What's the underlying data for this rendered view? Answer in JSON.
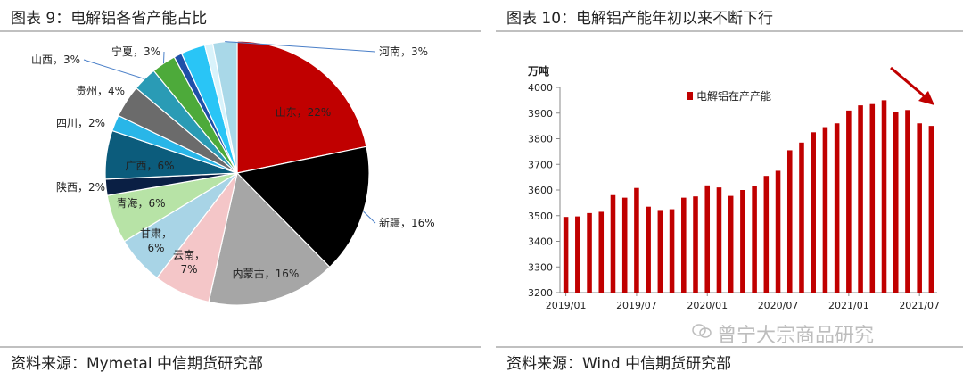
{
  "left": {
    "title": "图表 9：电解铝各省产能占比",
    "source": "资料来源：Mymetal 中信期货研究部"
  },
  "right": {
    "title": "图表 10：电解铝产能年初以来不断下行",
    "source": "资料来源：Wind 中信期货研究部",
    "watermark": "曾宁大宗商品研究"
  },
  "chart_data": [
    {
      "type": "pie",
      "title": "",
      "slices": [
        {
          "label": "山东，22%",
          "value": 22,
          "color": "#c00000"
        },
        {
          "label": "新疆，16%",
          "value": 16,
          "color": "#000000"
        },
        {
          "label": "内蒙古，16%",
          "value": 16,
          "color": "#a6a6a6"
        },
        {
          "label": "云南，7%",
          "value": 7,
          "color": "#f4c6c8"
        },
        {
          "label": "甘肃，6%",
          "value": 6,
          "color": "#a8d4e6"
        },
        {
          "label": "青海，6%",
          "value": 6,
          "color": "#b7e3a6"
        },
        {
          "label": "陕西，2%",
          "value": 2,
          "color": "#0a1f44"
        },
        {
          "label": "广西，6%",
          "value": 6,
          "color": "#0c5c7c"
        },
        {
          "label": "四川，2%",
          "value": 2,
          "color": "#29b6e8"
        },
        {
          "label": "贵州，4%",
          "value": 4,
          "color": "#6b6b6b"
        },
        {
          "label": "山西，3%",
          "value": 3,
          "color": "#2a9bb5"
        },
        {
          "label": "宁夏，3%",
          "value": 3,
          "color": "#4daa3a"
        },
        {
          "label": "",
          "value": 1,
          "color": "#1f4fa8"
        },
        {
          "label": "",
          "value": 3,
          "color": "#29c5f6"
        },
        {
          "label": "",
          "value": 1,
          "color": "#d9f3fb"
        },
        {
          "label": "河南，3%",
          "value": 3,
          "color": "#a9d8e8"
        }
      ]
    },
    {
      "type": "bar",
      "title": "",
      "unit_label": "万吨",
      "legend": "电解铝在产产能",
      "legend_position": "top-left",
      "color": "#c00000",
      "ylim": [
        3200,
        4000
      ],
      "yticks": [
        3200,
        3300,
        3400,
        3500,
        3600,
        3700,
        3800,
        3900,
        4000
      ],
      "xtick_labels": [
        "2019/01",
        "2019/07",
        "2020/01",
        "2020/07",
        "2021/01",
        "2021/07"
      ],
      "categories": [
        "2019/01",
        "2019/02",
        "2019/03",
        "2019/04",
        "2019/05",
        "2019/06",
        "2019/07",
        "2019/08",
        "2019/09",
        "2019/10",
        "2019/11",
        "2019/12",
        "2020/01",
        "2020/02",
        "2020/03",
        "2020/04",
        "2020/05",
        "2020/06",
        "2020/07",
        "2020/08",
        "2020/09",
        "2020/10",
        "2020/11",
        "2020/12",
        "2021/01",
        "2021/02",
        "2021/03",
        "2021/04",
        "2021/05",
        "2021/06",
        "2021/07",
        "2021/08"
      ],
      "values": [
        3495,
        3497,
        3510,
        3515,
        3580,
        3570,
        3608,
        3535,
        3522,
        3525,
        3570,
        3575,
        3618,
        3610,
        3577,
        3600,
        3615,
        3655,
        3675,
        3755,
        3785,
        3825,
        3845,
        3860,
        3910,
        3930,
        3935,
        3950,
        3905,
        3912,
        3860,
        3850
      ]
    }
  ]
}
